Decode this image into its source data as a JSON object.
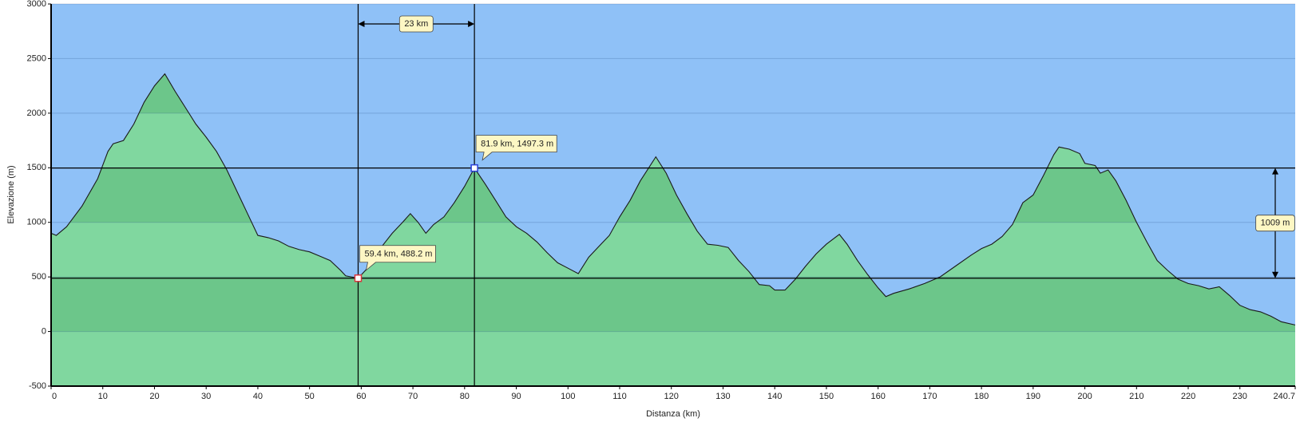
{
  "chart_data": {
    "type": "area",
    "xlabel": "Distanza   (km)",
    "ylabel": "Elevazione (m)",
    "x": [
      0,
      1,
      3,
      6,
      9,
      11,
      12,
      14,
      16,
      18,
      20,
      22,
      24,
      26,
      28,
      30,
      32,
      34,
      36,
      38,
      40,
      42,
      44,
      46,
      48,
      50,
      52,
      54,
      56,
      57,
      59.4,
      62,
      64,
      66,
      68,
      69.5,
      71,
      72.5,
      74,
      76,
      78,
      80,
      81.9,
      84,
      86,
      88,
      90,
      92,
      94,
      96,
      98,
      100,
      102,
      104,
      106,
      108,
      110,
      112,
      114,
      117,
      119,
      121,
      123,
      125,
      127,
      129,
      131,
      133,
      135,
      137,
      139,
      140,
      142,
      144,
      146,
      148,
      150,
      152.5,
      154,
      156,
      158,
      160,
      161.5,
      163,
      166,
      169,
      172,
      175,
      178,
      180,
      182,
      184,
      186,
      188,
      190,
      192,
      194,
      195,
      197,
      199,
      200,
      202,
      203,
      204.5,
      206,
      208,
      210,
      212,
      214,
      216,
      218,
      220,
      222,
      224,
      226,
      228,
      230,
      232,
      234,
      236,
      238,
      240.7
    ],
    "values": [
      900,
      880,
      960,
      1150,
      1400,
      1650,
      1720,
      1750,
      1900,
      2100,
      2250,
      2360,
      2200,
      2050,
      1900,
      1780,
      1650,
      1480,
      1280,
      1080,
      880,
      860,
      830,
      780,
      750,
      730,
      690,
      650,
      560,
      510,
      488.2,
      620,
      780,
      900,
      1000,
      1080,
      1000,
      900,
      980,
      1050,
      1180,
      1330,
      1497.3,
      1350,
      1200,
      1050,
      960,
      900,
      820,
      720,
      630,
      580,
      530,
      680,
      780,
      880,
      1050,
      1200,
      1380,
      1600,
      1450,
      1250,
      1080,
      920,
      800,
      790,
      770,
      650,
      550,
      430,
      420,
      380,
      380,
      480,
      600,
      710,
      800,
      890,
      800,
      650,
      520,
      400,
      320,
      350,
      390,
      440,
      500,
      600,
      700,
      760,
      800,
      870,
      980,
      1180,
      1250,
      1430,
      1620,
      1690,
      1670,
      1630,
      1540,
      1520,
      1450,
      1480,
      1380,
      1200,
      1000,
      820,
      650,
      560,
      480,
      440,
      420,
      390,
      410,
      330,
      240,
      200,
      180,
      140,
      90,
      60
    ],
    "xlim": [
      0,
      240.7
    ],
    "xticks": [
      0,
      10,
      20,
      30,
      40,
      50,
      60,
      70,
      80,
      90,
      100,
      110,
      120,
      130,
      140,
      150,
      160,
      170,
      180,
      190,
      200,
      210,
      220,
      230,
      240.7
    ],
    "ylim": [
      -500,
      3000
    ],
    "yticks": [
      -500,
      0,
      500,
      1000,
      1500,
      2000,
      2500,
      3000
    ],
    "sky_color": "#8fc1f7",
    "fill_color": "#80d79f",
    "band_color": "#6cc68a",
    "line_color": "#1a1a1a",
    "markers": [
      {
        "x": 59.4,
        "y": 488.2,
        "label": "59.4 km, 488.2 m",
        "color": "#d9363e"
      },
      {
        "x": 81.9,
        "y": 1497.3,
        "label": "81.9 km, 1497.3 m",
        "color": "#2a3fd9"
      }
    ],
    "span_label": "23 km",
    "diff_label": "1009 m"
  }
}
